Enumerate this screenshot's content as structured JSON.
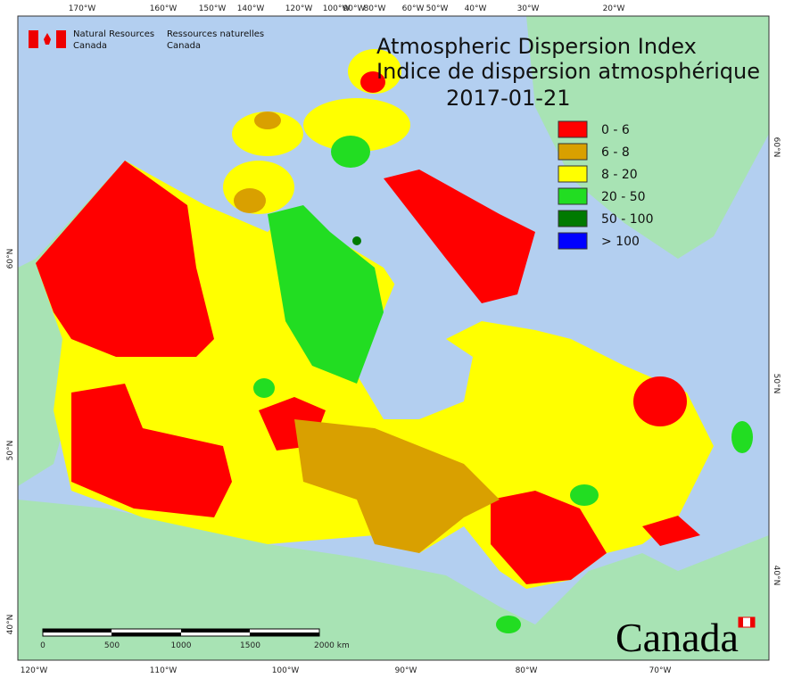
{
  "header": {
    "agency_en": [
      "Natural Resources",
      "Canada"
    ],
    "agency_fr": [
      "Ressources naturelles",
      "Canada"
    ]
  },
  "title": [
    "Atmospheric Dispersion Index",
    "Indice de dispersion atmosphérique"
  ],
  "date": "2017-01-21",
  "legend": [
    {
      "label": "0 - 6",
      "color": "#ff0000"
    },
    {
      "label": "6 - 8",
      "color": "#d9a000"
    },
    {
      "label": "8 - 20",
      "color": "#ffff00"
    },
    {
      "label": "20 - 50",
      "color": "#22dd22"
    },
    {
      "label": "50 - 100",
      "color": "#007a00"
    },
    {
      "label": "> 100",
      "color": "#0000ff"
    }
  ],
  "graticule": {
    "top": [
      "170°W",
      "160°W",
      "150°W",
      "140°W",
      "120°W",
      "100°W",
      "90°W",
      "80°W",
      "60°W",
      "50°W",
      "40°W",
      "30°W",
      "20°W"
    ],
    "bottom": [
      "120°W",
      "110°W",
      "100°W",
      "90°W",
      "80°W",
      "70°W"
    ],
    "left": [
      "60°N",
      "50°N",
      "40°N"
    ],
    "right": [
      "60°N",
      "50°N",
      "40°N"
    ]
  },
  "scale_bar": {
    "labels": [
      "0",
      "500",
      "1000",
      "1500",
      "2000 km"
    ]
  },
  "wordmark": "Canada"
}
